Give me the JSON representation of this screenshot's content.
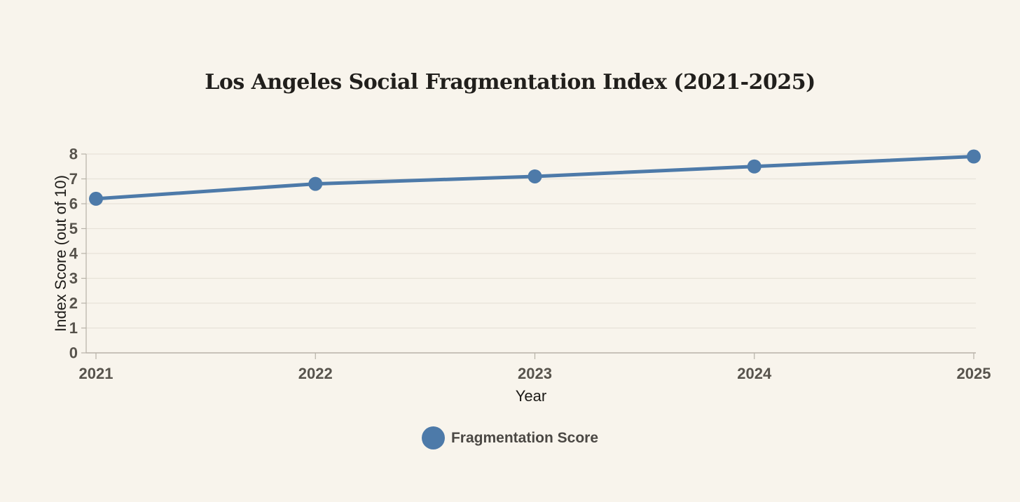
{
  "page": {
    "background": "#f8f4ec"
  },
  "chart_data": {
    "type": "line",
    "title": "Los Angeles Social Fragmentation Index (2021-2025)",
    "categories": [
      "2021",
      "2022",
      "2023",
      "2024",
      "2025"
    ],
    "series": [
      {
        "name": "Fragmentation Score",
        "values": [
          6.2,
          6.8,
          7.1,
          7.5,
          7.9
        ],
        "color": "#4d7aa9"
      }
    ],
    "xlabel": "Year",
    "ylabel": "Index Score (out of 10)",
    "ylim": [
      0,
      8
    ],
    "ytick_step": 1,
    "grid": "horizontal",
    "legend_position": "bottom",
    "marker": "circle",
    "colors": {
      "grid": "#e7e2d8",
      "axis": "#b7b2a8",
      "tick_label": "#57534c",
      "axis_label": "#1d1b18",
      "title": "#211f1c",
      "legend_text": "#4b4844"
    }
  }
}
